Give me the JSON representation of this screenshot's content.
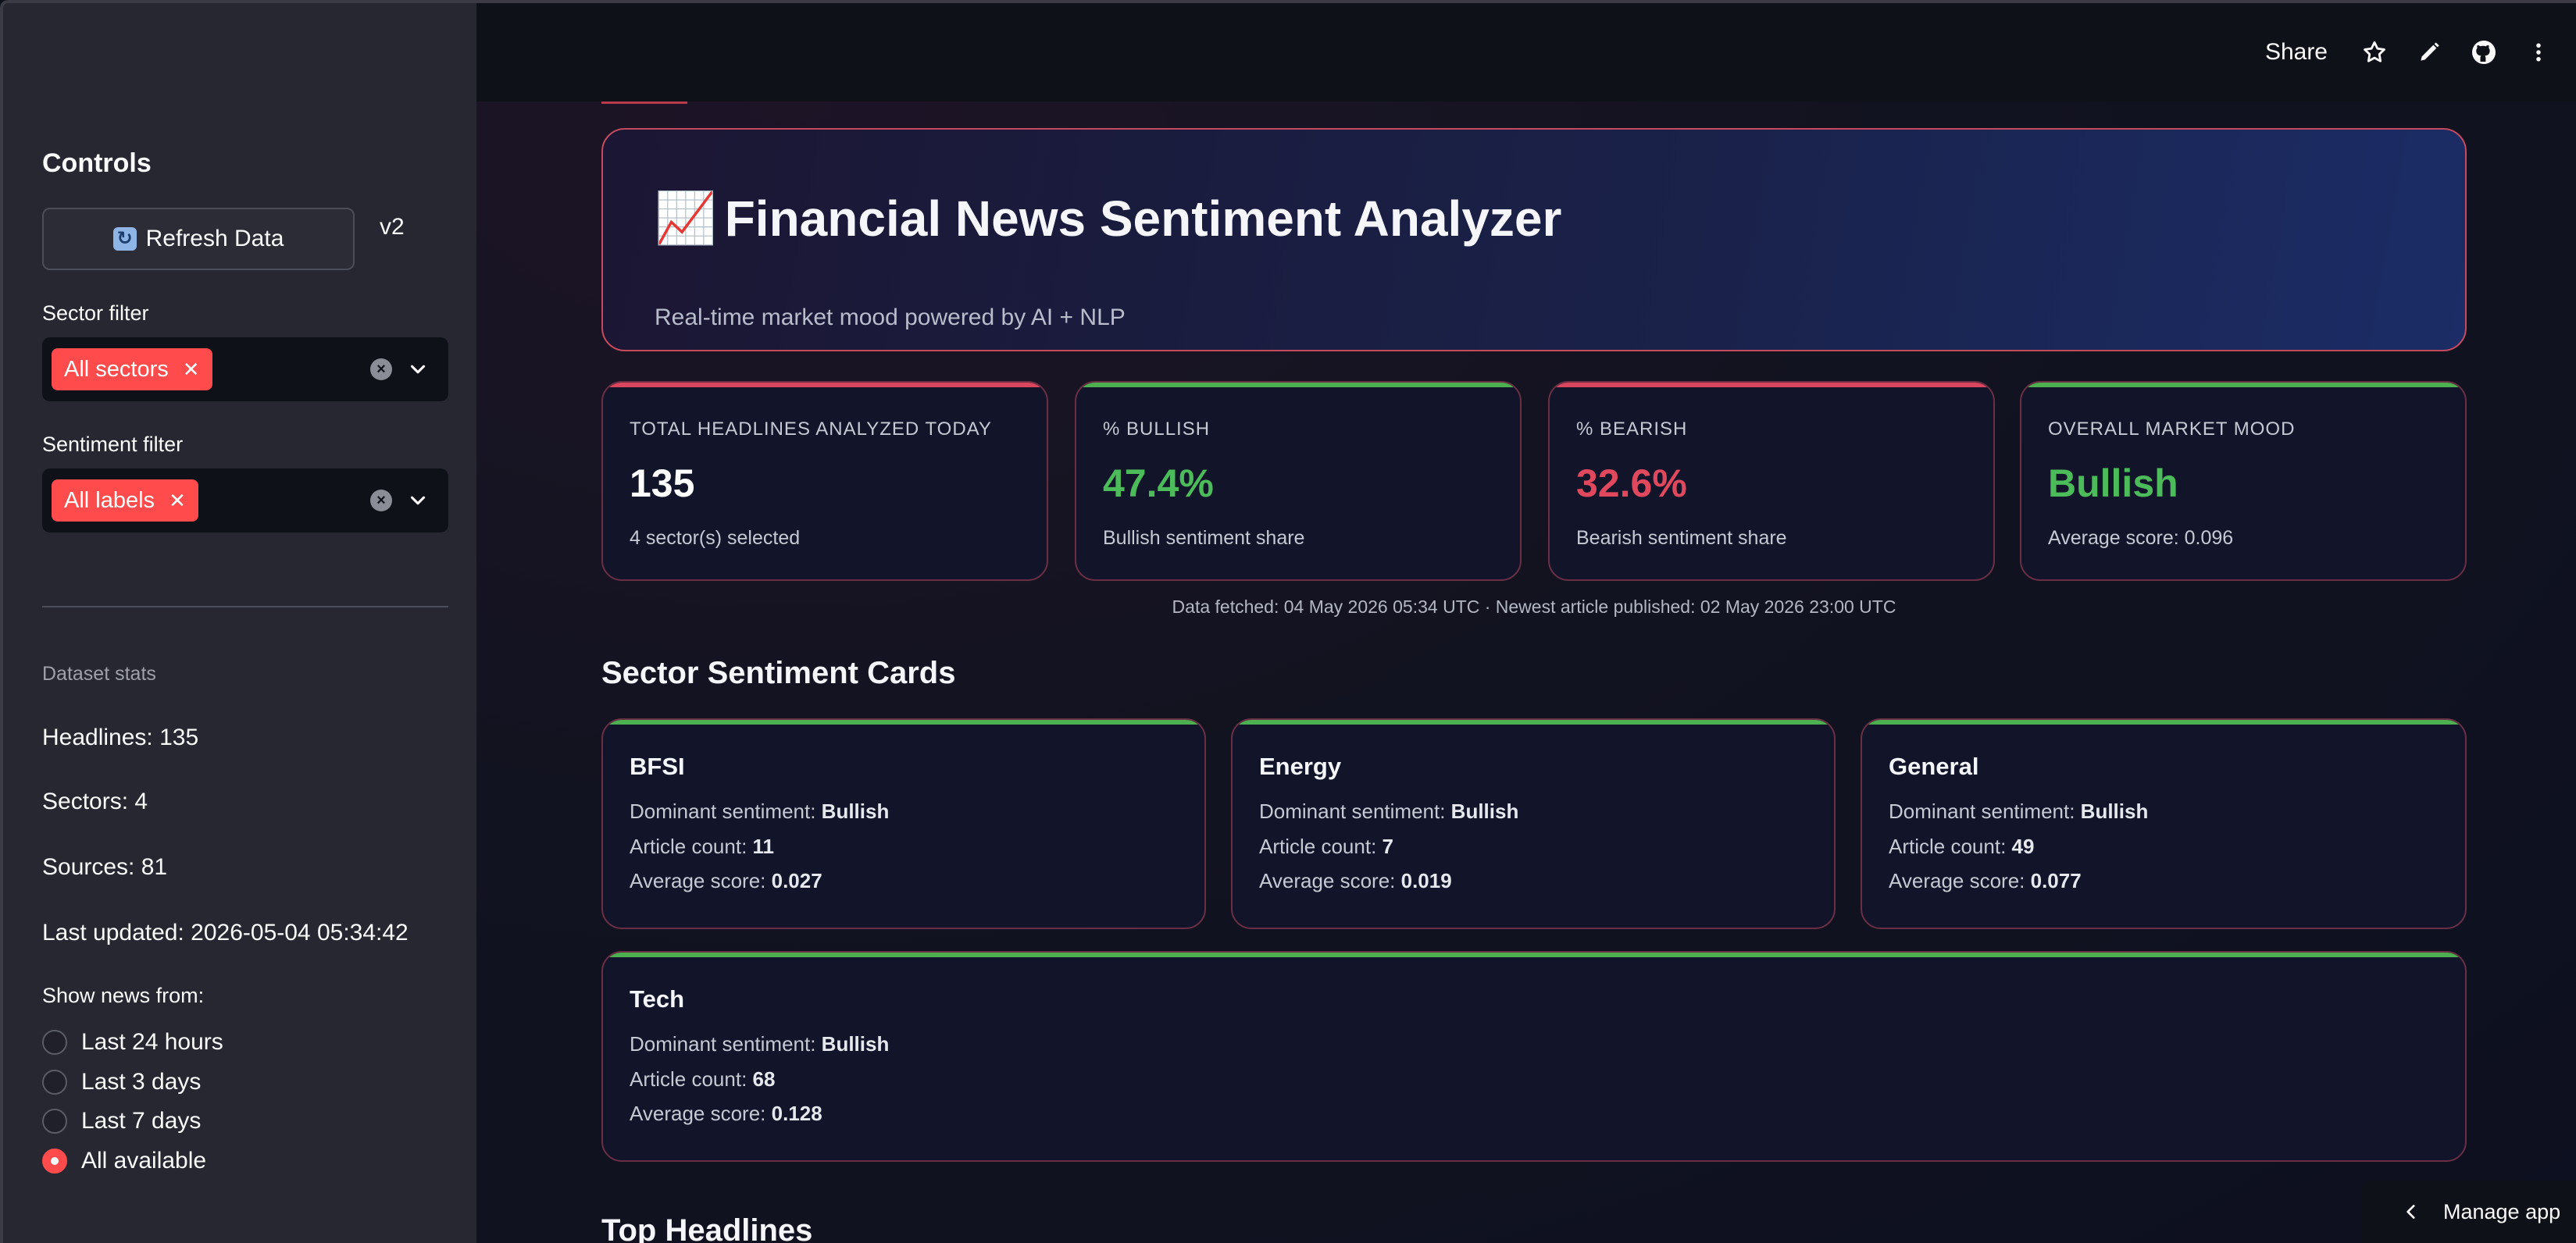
{
  "sidebar": {
    "title": "Controls",
    "refresh_label": "Refresh Data",
    "version": "v2",
    "sector_filter": {
      "label": "Sector filter",
      "chip": "All sectors"
    },
    "sentiment_filter": {
      "label": "Sentiment filter",
      "chip": "All labels"
    },
    "dataset_stats": {
      "heading": "Dataset stats",
      "headlines": "Headlines: 135",
      "sectors": "Sectors: 4",
      "sources": "Sources: 81",
      "last_updated": "Last updated: 2026-05-04 05:34:42"
    },
    "show_news": {
      "label": "Show news from:",
      "options": [
        "Last 24 hours",
        "Last 3 days",
        "Last 7 days",
        "All available"
      ],
      "selected": "All available"
    }
  },
  "topbar": {
    "share_label": "Share"
  },
  "hero": {
    "emoji": "📈",
    "title": "Financial News Sentiment Analyzer",
    "subtitle": "Real-time market mood powered by AI + NLP"
  },
  "kpis": [
    {
      "label": "TOTAL HEADLINES ANALYZED TODAY",
      "value": "135",
      "sub": "4 sector(s) selected",
      "accent": "#d9465d",
      "value_color": "#ffffff"
    },
    {
      "label": "% BULLISH",
      "value": "47.4%",
      "sub": "Bullish sentiment share",
      "accent": "#4caf50",
      "value_color": "#4cbb5a"
    },
    {
      "label": "% BEARISH",
      "value": "32.6%",
      "sub": "Bearish sentiment share",
      "accent": "#d9465d",
      "value_color": "#e0485e"
    },
    {
      "label": "OVERALL MARKET MOOD",
      "value": "Bullish",
      "sub": "Average score: 0.096",
      "accent": "#4caf50",
      "value_color": "#4cbb5a"
    }
  ],
  "fetched_text": "Data fetched: 04 May 2026 05:34 UTC · Newest article published: 02 May 2026 23:00 UTC",
  "sector_section_title": "Sector Sentiment Cards",
  "field_labels": {
    "dominant": "Dominant sentiment: ",
    "count": "Article count: ",
    "avg": "Average score: "
  },
  "sectors": [
    {
      "name": "BFSI",
      "dominant": "Bullish",
      "count": "11",
      "avg": "0.027"
    },
    {
      "name": "Energy",
      "dominant": "Bullish",
      "count": "7",
      "avg": "0.019"
    },
    {
      "name": "General",
      "dominant": "Bullish",
      "count": "49",
      "avg": "0.077"
    },
    {
      "name": "Tech",
      "dominant": "Bullish",
      "count": "68",
      "avg": "0.128"
    }
  ],
  "headlines_section_title": "Top Headlines",
  "manage_app_label": "Manage app",
  "colors": {
    "accent": "#ff4b4b",
    "bullish": "#4caf50",
    "bearish": "#d9465d"
  }
}
